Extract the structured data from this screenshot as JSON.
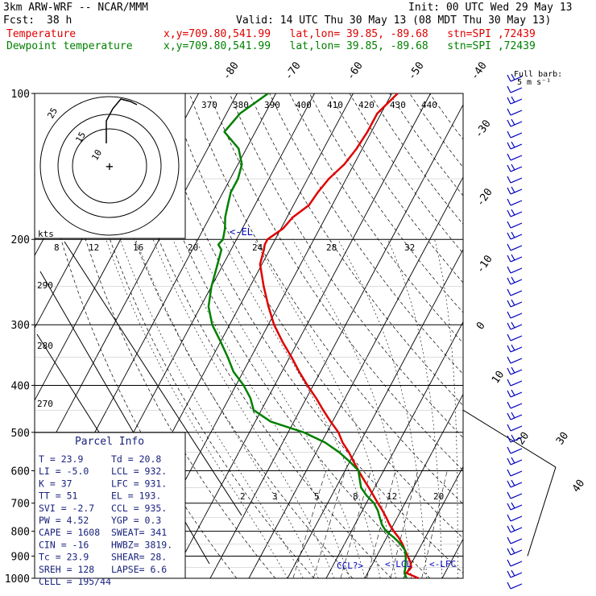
{
  "header": {
    "model": "3km ARW-WRF -- NCAR/MMM",
    "init": "Init: 00 UTC Wed 29 May 13",
    "fcst_label": "Fcst:",
    "fcst_value": "38 h",
    "valid": "Valid: 14 UTC Thu 30 May 13 (08 MDT Thu 30 May 13)",
    "temp_legend": "Temperature",
    "dew_legend": "Dewpoint temperature",
    "loc_info": "x,y=709.80,541.99   lat,lon= 39.85, -89.68   stn=SPI ,72439",
    "barb_title": "Full barb:",
    "barb_units": "5 m s⁻¹"
  },
  "colors": {
    "temperature": "#e00000",
    "dewpoint": "#008000",
    "barbs": "#0000c0",
    "parcel_text": "#1a237e"
  },
  "chart_data": {
    "type": "line",
    "subtype": "skew-T log-p sounding",
    "ylabel": "",
    "pressure_ticks": [
      "100",
      "200",
      "300",
      "400",
      "500",
      "600",
      "700",
      "800",
      "900",
      "1000"
    ],
    "isotherm_labels": [
      "-80",
      "-70",
      "-60",
      "-50",
      "-40",
      "-30",
      "-20",
      "-10",
      "0",
      "10",
      "20",
      "30",
      "40"
    ],
    "theta_labels": [
      "370",
      "380",
      "390",
      "400",
      "410",
      "420",
      "430",
      "440"
    ],
    "theta_label_left": [
      "290",
      "280",
      "270"
    ],
    "mixing_ratio_labels": [
      "2",
      "3",
      "5",
      "8",
      "12",
      "20"
    ],
    "hodo_speed_labels": [
      "kts",
      "8",
      "12",
      "16",
      "20",
      "24",
      "28",
      "32"
    ],
    "hodo_ring_labels": [
      "25",
      "15",
      "10"
    ],
    "series": [
      {
        "name": "Temperature",
        "p": [
          1000,
          975,
          950,
          925,
          900,
          875,
          850,
          825,
          800,
          775,
          750,
          725,
          700,
          675,
          650,
          625,
          600,
          575,
          550,
          525,
          500,
          475,
          450,
          425,
          400,
          375,
          350,
          325,
          300,
          275,
          250,
          225,
          210,
          205,
          200,
          190,
          180,
          170,
          160,
          150,
          140,
          130,
          120,
          110,
          100
        ],
        "t": [
          23.9,
          20.0,
          20.5,
          19.5,
          18.0,
          16.5,
          15.0,
          13.2,
          11.0,
          9.0,
          7.2,
          5.2,
          3.0,
          0.8,
          -1.5,
          -4.0,
          -6.5,
          -9.0,
          -11.5,
          -14.5,
          -17.0,
          -20.5,
          -24.0,
          -27.5,
          -31.5,
          -35.5,
          -39.5,
          -44.0,
          -48.5,
          -52.5,
          -56.5,
          -60.5,
          -61.5,
          -62.0,
          -62.0,
          -59.5,
          -58.5,
          -56.0,
          -55.5,
          -54.5,
          -52.5,
          -51.5,
          -51.0,
          -51.0,
          -48.5
        ]
      },
      {
        "name": "Dewpoint temperature",
        "p": [
          1000,
          975,
          950,
          925,
          900,
          875,
          850,
          825,
          800,
          775,
          750,
          725,
          700,
          675,
          650,
          625,
          600,
          575,
          550,
          525,
          500,
          475,
          450,
          425,
          400,
          375,
          350,
          325,
          300,
          275,
          250,
          225,
          210,
          205,
          200,
          190,
          180,
          170,
          160,
          150,
          140,
          130,
          120,
          110,
          100
        ],
        "t": [
          20.8,
          19.5,
          19.0,
          18.3,
          17.5,
          16.5,
          14.5,
          12.0,
          9.0,
          7.0,
          5.5,
          4.0,
          2.0,
          -1.0,
          -3.5,
          -5.0,
          -6.5,
          -10.0,
          -14.0,
          -19.0,
          -26.0,
          -36.0,
          -42.0,
          -44.5,
          -48.0,
          -52.5,
          -56.0,
          -60.0,
          -64.5,
          -68.0,
          -70.0,
          -71.5,
          -72.5,
          -74.0,
          -73.5,
          -74.5,
          -76.0,
          -77.0,
          -78.0,
          -78.0,
          -79.0,
          -82.0,
          -88.0,
          -86.5,
          -82.0
        ]
      }
    ],
    "annotations": [
      {
        "text": "<-EL",
        "p": 193
      },
      {
        "text": "CCL?>",
        "p": 935
      },
      {
        "text": "<-LCL",
        "p": 932
      },
      {
        "text": "<-LFC",
        "p": 931
      }
    ]
  },
  "parcel": {
    "title": "Parcel Info",
    "rows": [
      [
        "T   =    23.9",
        "Td  =  20.8"
      ],
      [
        "LI  =   -5.0",
        "LCL =  932."
      ],
      [
        "K   =     37",
        "LFC =  931."
      ],
      [
        "TT  =     51",
        "EL  =  193."
      ],
      [
        "SVI =   -2.7",
        "CCL =  935."
      ],
      [
        "PW  =   4.52",
        "YGP =   0.3"
      ],
      [
        "CAPE =  1608",
        "SWEAT=  341"
      ],
      [
        "CIN  =   -16",
        "HWBZ= 3819."
      ],
      [
        "Tc =    23.9",
        "SHEAR=  28."
      ],
      [
        "SREH =   128",
        "LAPSE=  6.6"
      ],
      [
        "CELL = 195/44",
        ""
      ]
    ]
  }
}
